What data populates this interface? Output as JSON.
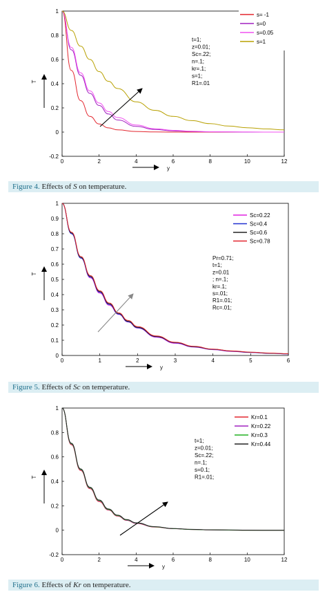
{
  "figures": [
    {
      "caption": {
        "figure": "Figure 4.",
        "pre": " Effects of ",
        "italic": "S",
        "post": " on temperature."
      }
    },
    {
      "caption": {
        "figure": "Figure 5.",
        "pre": " Effects of ",
        "italic": "Sc",
        "post": " on temperature."
      }
    },
    {
      "caption": {
        "figure": "Figure 6.",
        "pre": " Effects of ",
        "italic": "Kr",
        "post": " on temperature."
      }
    }
  ],
  "chart_data": [
    {
      "type": "line",
      "xlabel": "y",
      "ylabel": "T",
      "xlim": [
        0,
        12
      ],
      "ylim": [
        -0.2,
        1
      ],
      "xticks": [
        "0",
        "2",
        "4",
        "6",
        "8",
        "10",
        "12"
      ],
      "yticks": [
        "-0.2",
        "0",
        "0.2",
        "0.4",
        "0.6",
        "0.8",
        "1"
      ],
      "legend_position": "top-right",
      "x": [
        0,
        0.5,
        1,
        1.5,
        2,
        2.5,
        3,
        4,
        5,
        6,
        7,
        8,
        9,
        10,
        11,
        12
      ],
      "series": [
        {
          "name": "s= -1",
          "color": "#e3262e",
          "values": [
            1,
            0.51,
            0.26,
            0.13,
            0.067,
            0.035,
            0.018,
            0.005,
            0.001,
            0,
            0,
            0,
            0,
            0,
            0,
            0
          ]
        },
        {
          "name": "s=0",
          "color": "#a020c0",
          "values": [
            1,
            0.68,
            0.47,
            0.32,
            0.22,
            0.15,
            0.1,
            0.047,
            0.022,
            0.01,
            0.005,
            0.002,
            0.001,
            0,
            0,
            0
          ]
        },
        {
          "name": "s=0.05",
          "color": "#f050f0",
          "values": [
            1,
            0.7,
            0.49,
            0.34,
            0.24,
            0.17,
            0.12,
            0.058,
            0.028,
            0.014,
            0.007,
            0.003,
            0.002,
            0.001,
            0,
            0
          ]
        },
        {
          "name": "s=1",
          "color": "#b8a000",
          "values": [
            1,
            0.84,
            0.71,
            0.6,
            0.5,
            0.42,
            0.36,
            0.25,
            0.18,
            0.13,
            0.095,
            0.07,
            0.05,
            0.036,
            0.026,
            0.018
          ]
        }
      ],
      "annotations": [
        "t=1;",
        "z=0.01;",
        "Sc=.22;",
        "n=.1;",
        "kr=.1;",
        "s=1;",
        "R1=.01"
      ]
    },
    {
      "type": "line",
      "xlabel": "y",
      "ylabel": "T",
      "xlim": [
        0,
        6
      ],
      "ylim": [
        0,
        1
      ],
      "xticks": [
        "0",
        "1",
        "2",
        "3",
        "4",
        "5",
        "6"
      ],
      "yticks": [
        "0",
        "0.1",
        "0.2",
        "0.3",
        "0.4",
        "0.5",
        "0.6",
        "0.7",
        "0.8",
        "0.9",
        "1"
      ],
      "legend_position": "top-right",
      "x": [
        0,
        0.25,
        0.5,
        0.75,
        1,
        1.25,
        1.5,
        1.75,
        2,
        2.5,
        3,
        3.5,
        4,
        4.5,
        5,
        5.5,
        6
      ],
      "series": [
        {
          "name": "Sc=0.22",
          "color": "#e020e0",
          "values": [
            1,
            0.8,
            0.64,
            0.51,
            0.41,
            0.33,
            0.27,
            0.22,
            0.18,
            0.12,
            0.08,
            0.055,
            0.038,
            0.027,
            0.019,
            0.014,
            0.01
          ]
        },
        {
          "name": "Sc=0.4",
          "color": "#2030d0",
          "values": [
            1,
            0.8,
            0.64,
            0.515,
            0.415,
            0.335,
            0.272,
            0.222,
            0.182,
            0.123,
            0.083,
            0.057,
            0.04,
            0.028,
            0.02,
            0.014,
            0.01
          ]
        },
        {
          "name": "Sc=0.6",
          "color": "#222222",
          "values": [
            1,
            0.805,
            0.645,
            0.52,
            0.42,
            0.34,
            0.276,
            0.225,
            0.185,
            0.125,
            0.085,
            0.058,
            0.041,
            0.029,
            0.021,
            0.015,
            0.011
          ]
        },
        {
          "name": "Sc=0.78",
          "color": "#e3262e",
          "values": [
            1,
            0.81,
            0.65,
            0.525,
            0.425,
            0.345,
            0.28,
            0.23,
            0.19,
            0.128,
            0.087,
            0.06,
            0.042,
            0.03,
            0.022,
            0.016,
            0.012
          ]
        }
      ],
      "annotations": [
        "Pr=0.71;",
        "t=1;",
        "z=0.01",
        "; n=.1;",
        "kr=.1;",
        "s=.01;",
        "R1=.01;",
        "Rc=.01;"
      ]
    },
    {
      "type": "line",
      "xlabel": "y",
      "ylabel": "T",
      "xlim": [
        0,
        12
      ],
      "ylim": [
        -0.2,
        1
      ],
      "xticks": [
        "0",
        "2",
        "4",
        "6",
        "8",
        "10",
        "12"
      ],
      "yticks": [
        "-0.2",
        "0",
        "0.2",
        "0.4",
        "0.6",
        "0.8",
        "1"
      ],
      "legend_position": "top-right",
      "x": [
        0,
        0.5,
        1,
        1.5,
        2,
        2.5,
        3,
        3.5,
        4,
        5,
        6,
        7,
        8,
        9,
        10,
        11,
        12
      ],
      "series": [
        {
          "name": "Kr=0.1",
          "color": "#e3262e",
          "values": [
            1,
            0.7,
            0.49,
            0.34,
            0.235,
            0.165,
            0.115,
            0.08,
            0.055,
            0.026,
            0.012,
            0.006,
            0.003,
            0.001,
            0,
            0,
            0
          ]
        },
        {
          "name": "Kr=0.22",
          "color": "#a020c0",
          "values": [
            1,
            0.705,
            0.495,
            0.345,
            0.24,
            0.168,
            0.118,
            0.082,
            0.057,
            0.027,
            0.013,
            0.006,
            0.003,
            0.001,
            0,
            0,
            0
          ]
        },
        {
          "name": "Kr=0.3",
          "color": "#20b020",
          "values": [
            1,
            0.708,
            0.498,
            0.348,
            0.243,
            0.17,
            0.12,
            0.084,
            0.059,
            0.028,
            0.013,
            0.006,
            0.003,
            0.001,
            0,
            0,
            0
          ]
        },
        {
          "name": "Kr=0.44",
          "color": "#222222",
          "values": [
            1,
            0.712,
            0.502,
            0.352,
            0.247,
            0.174,
            0.123,
            0.087,
            0.061,
            0.029,
            0.014,
            0.007,
            0.003,
            0.002,
            0.001,
            0,
            0
          ]
        }
      ],
      "annotations": [
        "t=1;",
        "z=0.01;",
        "Sc=.22;",
        "n=.1;",
        "s=0.1;",
        "R1=.01;"
      ]
    }
  ]
}
